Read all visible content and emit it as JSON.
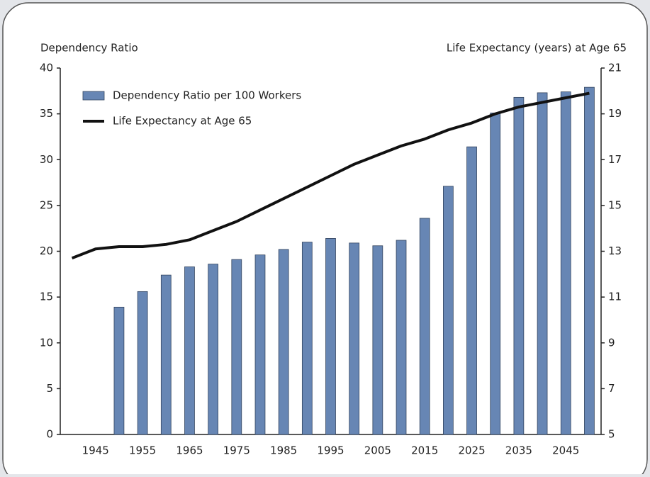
{
  "chart_data": {
    "type": "bar",
    "y_label": "Dependency Ratio",
    "y2_label": "Life Expectancy (years) at Age 65",
    "categories": [
      null,
      "1945",
      null,
      "1955",
      null,
      "1965",
      null,
      "1975",
      null,
      "1985",
      null,
      "1995",
      null,
      "2005",
      null,
      "2015",
      null,
      "2025",
      null,
      "2035",
      null,
      "2045",
      null
    ],
    "series": [
      {
        "name": "Dependency Ratio per 100 Workers",
        "type": "bar",
        "color": "#6786b4",
        "values": [
          null,
          null,
          13.9,
          15.6,
          17.4,
          18.3,
          18.6,
          19.1,
          19.6,
          20.2,
          21.0,
          21.4,
          20.9,
          20.6,
          21.2,
          23.6,
          27.1,
          31.4,
          35.1,
          36.8,
          37.3,
          37.4,
          37.9
        ]
      },
      {
        "name": "Life Expectancy at Age 65",
        "type": "line",
        "color": "#111111",
        "axis": "y2",
        "values": [
          12.7,
          13.1,
          13.2,
          13.2,
          13.3,
          13.5,
          13.9,
          14.3,
          14.8,
          15.3,
          15.8,
          16.3,
          16.8,
          17.2,
          17.6,
          17.9,
          18.3,
          18.6,
          19.0,
          19.3,
          19.5,
          19.7,
          19.9
        ]
      }
    ],
    "ylim": [
      0,
      40
    ],
    "yticks": [
      0,
      5,
      10,
      15,
      20,
      25,
      30,
      35,
      40
    ],
    "y2lim": [
      5,
      21
    ],
    "y2ticks": [
      5,
      7,
      9,
      11,
      13,
      15,
      17,
      19,
      21
    ],
    "legend": "upper left"
  }
}
